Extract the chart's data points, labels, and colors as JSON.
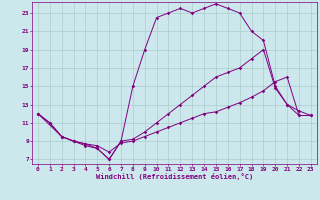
{
  "xlabel": "Windchill (Refroidissement éolien,°C)",
  "bg_color": "#cce8ec",
  "line_color": "#800080",
  "grid_color": "#aacccc",
  "xlim": [
    -0.5,
    23.5
  ],
  "ylim": [
    6.5,
    24.2
  ],
  "xticks": [
    0,
    1,
    2,
    3,
    4,
    5,
    6,
    7,
    8,
    9,
    10,
    11,
    12,
    13,
    14,
    15,
    16,
    17,
    18,
    19,
    20,
    21,
    22,
    23
  ],
  "yticks": [
    7,
    9,
    11,
    13,
    15,
    17,
    19,
    21,
    23
  ],
  "line1_x": [
    0,
    1,
    2,
    3,
    4,
    5,
    6,
    7,
    8,
    9,
    10,
    11,
    12,
    13,
    14,
    15,
    16,
    17,
    18,
    19,
    20,
    21,
    22,
    23
  ],
  "line1_y": [
    12,
    11,
    9.5,
    9,
    8.5,
    8.2,
    7,
    9,
    15,
    19,
    22.5,
    23,
    23.5,
    23,
    23.5,
    24,
    23.5,
    23,
    21,
    20,
    15,
    13,
    12.3,
    11.8
  ],
  "line2_x": [
    0,
    2,
    3,
    4,
    5,
    6,
    7,
    8,
    9,
    10,
    11,
    12,
    13,
    14,
    15,
    16,
    17,
    18,
    19,
    20,
    21,
    22,
    23
  ],
  "line2_y": [
    12,
    9.5,
    9,
    8.7,
    8.5,
    7.8,
    8.8,
    9,
    9.5,
    10,
    10.5,
    11,
    11.5,
    12,
    12.2,
    12.7,
    13.2,
    13.8,
    14.5,
    15.5,
    16,
    11.8,
    11.8
  ],
  "line3_x": [
    0,
    1,
    2,
    3,
    4,
    5,
    6,
    7,
    8,
    9,
    10,
    11,
    12,
    13,
    14,
    15,
    16,
    17,
    18,
    19,
    20,
    21,
    22,
    23
  ],
  "line3_y": [
    12,
    11,
    9.5,
    9,
    8.7,
    8.2,
    7,
    9,
    9.2,
    10,
    11,
    12,
    13,
    14,
    15,
    16,
    16.5,
    17,
    18,
    19,
    14.8,
    13,
    11.8,
    11.8
  ]
}
